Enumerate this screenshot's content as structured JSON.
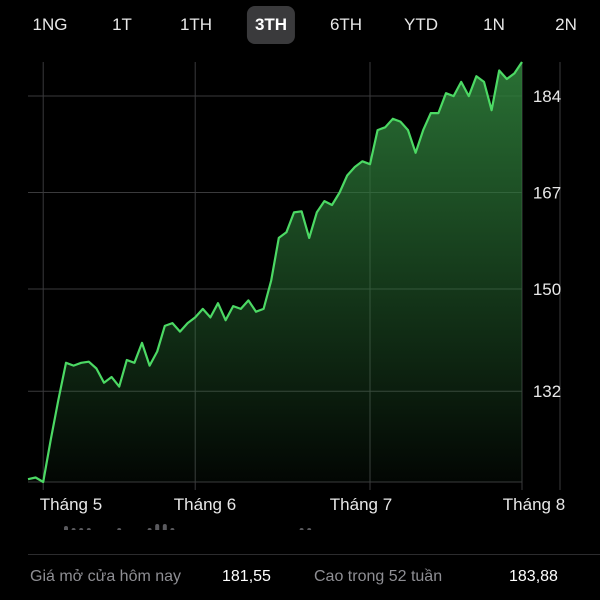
{
  "tabs": [
    "1NG",
    "1T",
    "1TH",
    "3TH",
    "6TH",
    "YTD",
    "1N",
    "2N"
  ],
  "active_tab": "3TH",
  "colors": {
    "line": "#4cd964",
    "fill_top": "#2e7d3a",
    "grid": "#3a3a3c",
    "volume": "#5a5a5e"
  },
  "stats": {
    "open_label": "Giá mở cửa hôm nay",
    "open_value": "181,55",
    "high_label": "Cao trong 52 tuần",
    "high_value": "183,88"
  },
  "chart_data": {
    "type": "area",
    "title": "",
    "xlabel": "",
    "ylabel": "",
    "ylim": [
      116,
      190
    ],
    "y_ticks": [
      132,
      150,
      167,
      184
    ],
    "x_tick_labels": [
      "Tháng 5",
      "Tháng 6",
      "Tháng 7",
      "Tháng 8"
    ],
    "x_tick_index": [
      2,
      22,
      45,
      70
    ],
    "grid": true,
    "values": [
      116.5,
      116.8,
      116.0,
      123.5,
      130.5,
      137.0,
      136.5,
      137.0,
      137.2,
      136.0,
      133.5,
      134.5,
      132.8,
      137.5,
      137.0,
      140.5,
      136.5,
      139.0,
      143.5,
      144.0,
      142.5,
      144.0,
      145.0,
      146.5,
      145.0,
      147.5,
      144.5,
      147.0,
      146.5,
      148.0,
      146.0,
      146.5,
      151.5,
      159.0,
      160.0,
      163.5,
      163.7,
      159.0,
      163.5,
      165.5,
      164.8,
      167.0,
      170.0,
      171.5,
      172.5,
      172.0,
      178.0,
      178.5,
      180.0,
      179.5,
      178.0,
      174.0,
      178.0,
      181.0,
      181.0,
      184.5,
      184.0,
      186.5,
      184.0,
      187.5,
      186.5,
      181.5,
      188.5,
      187.0,
      188.0,
      190.0
    ],
    "volume": [
      3,
      3,
      2,
      3,
      4,
      6,
      5,
      5,
      5,
      4,
      4,
      3,
      5,
      3,
      4,
      4,
      5,
      7,
      7,
      5,
      3,
      3,
      3,
      3,
      4,
      4,
      3,
      3,
      3,
      4,
      4,
      3,
      3,
      3,
      3,
      4,
      5,
      5,
      4,
      4,
      3,
      3,
      3,
      4,
      3,
      4,
      3,
      3,
      3,
      4,
      4,
      3,
      3,
      3,
      3,
      4,
      3,
      3,
      3,
      3,
      3,
      3,
      4,
      3,
      3,
      3
    ]
  }
}
